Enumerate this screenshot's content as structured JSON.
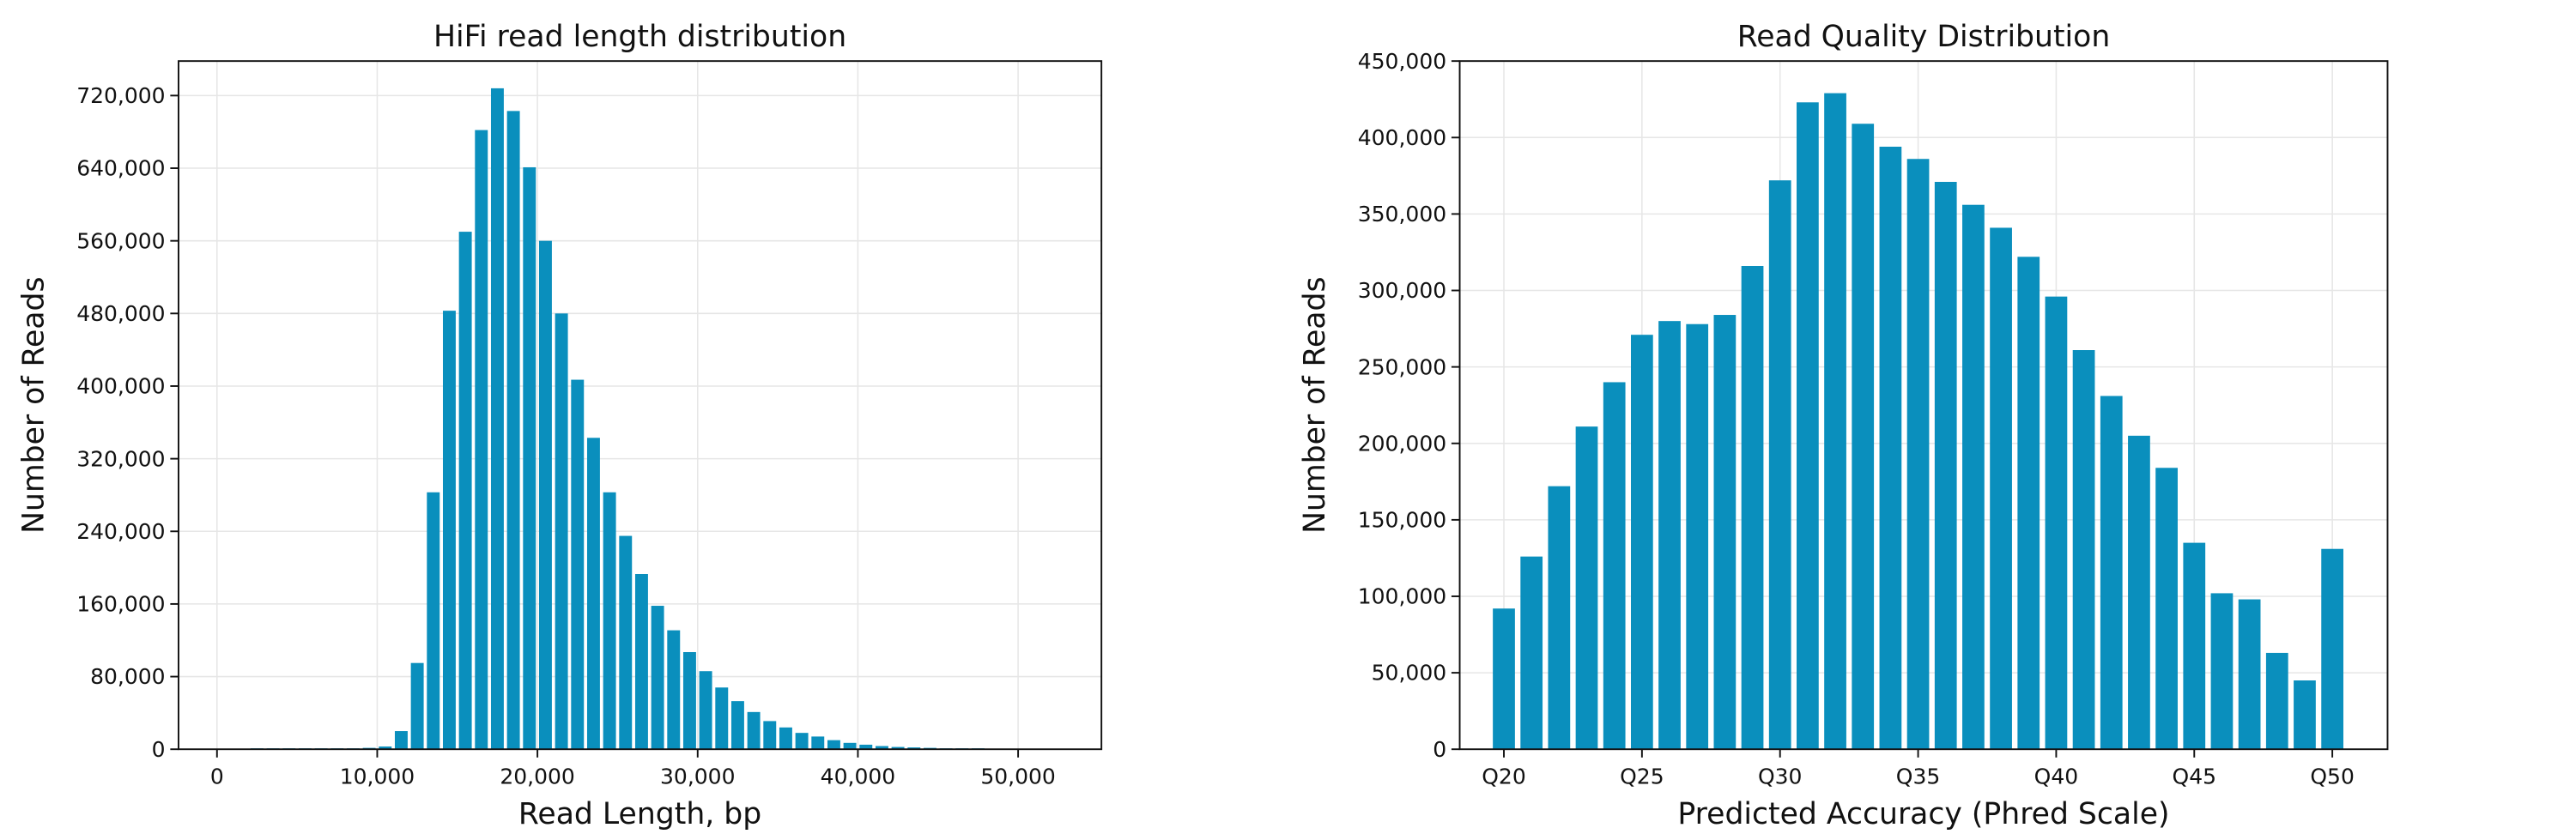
{
  "chart_data": [
    {
      "type": "histogram",
      "title": "HiFi read length distribution",
      "x_label": "Read Length, bp",
      "y_label": "Number of Reads",
      "color": "#0a8fbd",
      "grid": true,
      "bins": [
        2000,
        3000,
        4000,
        5000,
        6000,
        7000,
        8000,
        9000,
        10000,
        11000,
        12000,
        13000,
        14000,
        15000,
        16000,
        17000,
        18000,
        19000,
        20000,
        21000,
        22000,
        23000,
        24000,
        25000,
        26000,
        27000,
        28000,
        29000,
        30000,
        31000,
        32000,
        33000,
        34000,
        35000,
        36000,
        37000,
        38000,
        39000,
        40000,
        41000,
        42000,
        43000,
        44000,
        45000,
        46000,
        47000,
        48000,
        49000
      ],
      "values": [
        1000,
        1000,
        1000,
        1000,
        1000,
        1000,
        1000,
        1500,
        3000,
        20000,
        95000,
        283000,
        483000,
        570000,
        682000,
        728000,
        703000,
        641000,
        560000,
        480000,
        407000,
        343000,
        283000,
        235000,
        193000,
        158000,
        131000,
        107000,
        86000,
        68000,
        53000,
        41000,
        31000,
        24000,
        18000,
        14000,
        10000,
        7000,
        5000,
        3500,
        2500,
        2000,
        1500,
        1000,
        1000,
        1000,
        500
      ],
      "xlim": [
        -2400,
        55200
      ],
      "xticks": [
        0,
        {
          "value": 10000,
          "label": "10,000"
        },
        {
          "value": 20000,
          "label": "20,000"
        },
        {
          "value": 30000,
          "label": "30,000"
        },
        {
          "value": 40000,
          "label": "40,000"
        },
        {
          "value": 50000,
          "label": "50,000"
        }
      ],
      "ylim": [
        0,
        758000
      ],
      "yticks": [
        0,
        {
          "value": 80000,
          "label": "80,000"
        },
        {
          "value": 160000,
          "label": "160,000"
        },
        {
          "value": 240000,
          "label": "240,000"
        },
        {
          "value": 320000,
          "label": "320,000"
        },
        {
          "value": 400000,
          "label": "400,000"
        },
        {
          "value": 480000,
          "label": "480,000"
        },
        {
          "value": 560000,
          "label": "560,000"
        },
        {
          "value": 640000,
          "label": "640,000"
        },
        {
          "value": 720000,
          "label": "720,000"
        }
      ]
    },
    {
      "type": "bar",
      "title": "Read Quality Distribution",
      "x_label": "Predicted Accuracy (Phred Scale)",
      "y_label": "Number of Reads",
      "color": "#0a8fbd",
      "grid": true,
      "categories": [
        "Q20",
        null,
        null,
        null,
        null,
        "Q25",
        null,
        null,
        null,
        null,
        "Q30",
        null,
        null,
        null,
        null,
        "Q35",
        null,
        null,
        null,
        null,
        "Q40",
        null,
        null,
        null,
        null,
        "Q45",
        null,
        null,
        null,
        null,
        "Q50"
      ],
      "values": [
        92000,
        126000,
        172000,
        211000,
        240000,
        271000,
        280000,
        278000,
        284000,
        316000,
        372000,
        423000,
        429000,
        409000,
        394000,
        386000,
        371000,
        356000,
        341000,
        322000,
        296000,
        261000,
        231000,
        205000,
        184000,
        135000,
        102000,
        98000,
        63000,
        45000,
        131000
      ],
      "ylim": [
        0,
        450000
      ],
      "yticks": [
        0,
        {
          "value": 50000,
          "label": "50,000"
        },
        {
          "value": 100000,
          "label": "100,000"
        },
        {
          "value": 150000,
          "label": "150,000"
        },
        {
          "value": 200000,
          "label": "200,000"
        },
        {
          "value": 250000,
          "label": "250,000"
        },
        {
          "value": 300000,
          "label": "300,000"
        },
        {
          "value": 350000,
          "label": "350,000"
        },
        {
          "value": 400000,
          "label": "400,000"
        },
        {
          "value": 450000,
          "label": "450,000"
        }
      ]
    }
  ]
}
